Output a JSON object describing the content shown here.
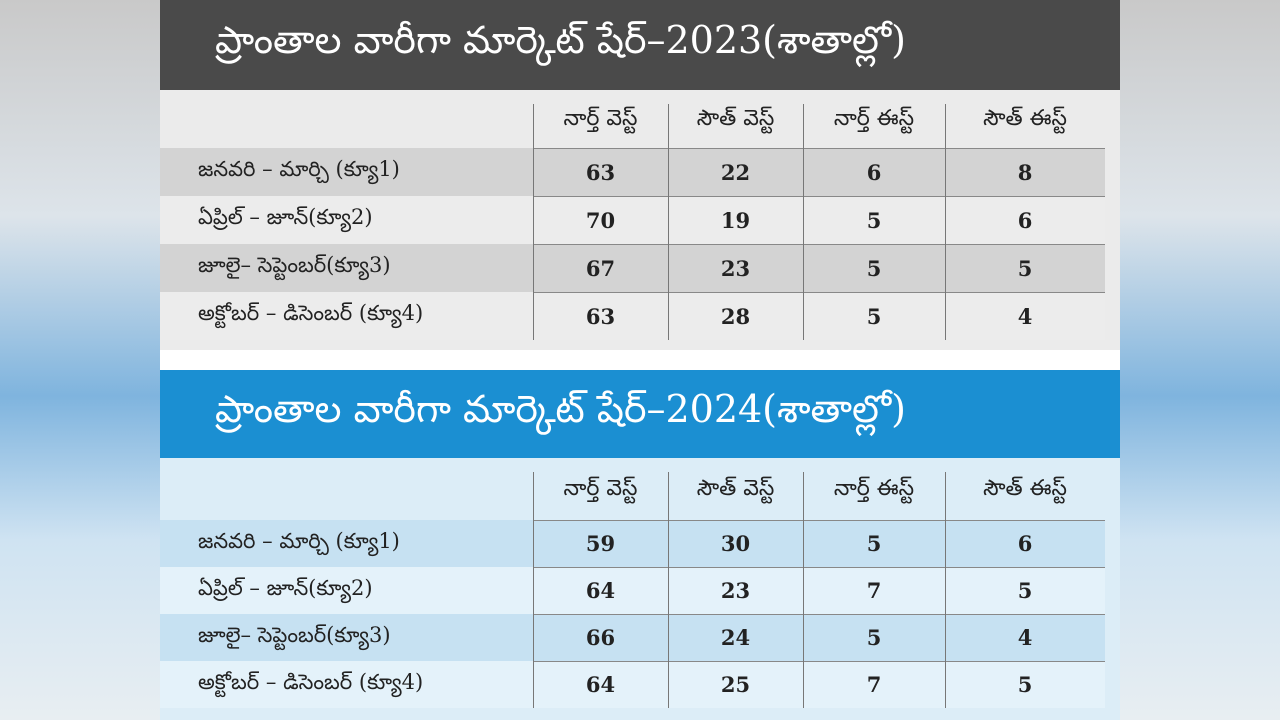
{
  "tables": [
    {
      "title": "ప్రాంతాల వారీగా మార్కెట్ షేర్–2023(శాతాల్లో)",
      "columns": [
        "నార్త్ వెస్ట్",
        "సౌత్ వెస్ట్",
        "నార్త్ ఈస్ట్",
        "సౌత్ ఈస్ట్"
      ],
      "rows": [
        {
          "label": "జనవరి – మార్చి (క్యూ1)",
          "values": [
            63,
            22,
            6,
            8
          ]
        },
        {
          "label": "ఏప్రిల్ – జూన్(క్యూ2)",
          "values": [
            70,
            19,
            5,
            6
          ]
        },
        {
          "label": "జూలై– సెప్టెంబర్(క్యూ3)",
          "values": [
            67,
            23,
            5,
            5
          ]
        },
        {
          "label": "అక్టోబర్ – డిసెంబర్ (క్యూ4)",
          "values": [
            63,
            28,
            5,
            4
          ]
        }
      ]
    },
    {
      "title": "ప్రాంతాల వారీగా మార్కెట్ షేర్–2024(శాతాల్లో)",
      "columns": [
        "నార్త్ వెస్ట్",
        "సౌత్ వెస్ట్",
        "నార్త్ ఈస్ట్",
        "సౌత్ ఈస్ట్"
      ],
      "rows": [
        {
          "label": "జనవరి – మార్చి (క్యూ1)",
          "values": [
            59,
            30,
            5,
            6
          ]
        },
        {
          "label": "ఏప్రిల్ – జూన్(క్యూ2)",
          "values": [
            64,
            23,
            7,
            5
          ]
        },
        {
          "label": "జూలై– సెప్టెంబర్(క్యూ3)",
          "values": [
            66,
            24,
            5,
            4
          ]
        },
        {
          "label": "అక్టోబర్ – డిసెంబర్ (క్యూ4)",
          "values": [
            64,
            25,
            7,
            5
          ]
        }
      ]
    }
  ]
}
